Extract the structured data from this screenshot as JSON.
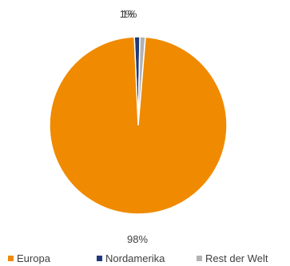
{
  "chart_data": {
    "type": "pie",
    "title": "",
    "slices": [
      {
        "label": "Europa",
        "value": 98,
        "display": "98%",
        "color": "#F08A00"
      },
      {
        "label": "Nordamerika",
        "value": 1,
        "display": "1%",
        "color": "#1F3A7A"
      },
      {
        "label": "Rest der Welt",
        "value": 1,
        "display": "1%",
        "color": "#B3B3B3"
      }
    ],
    "legend_position": "bottom"
  }
}
